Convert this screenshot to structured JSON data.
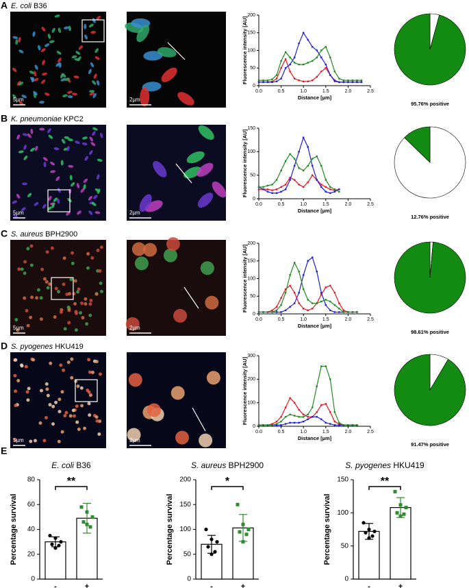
{
  "panels": [
    {
      "letter": "A",
      "species": "E. coli",
      "strain": "B36",
      "scale_1": "5µm",
      "scale_2": "2µm"
    },
    {
      "letter": "B",
      "species": "K. pneumoniae",
      "strain": "KPC2",
      "scale_1": "5µm",
      "scale_2": "2µm"
    },
    {
      "letter": "C",
      "species": "S. aureus",
      "strain": "BPH2900",
      "scale_1": "5µm",
      "scale_2": "2µm"
    },
    {
      "letter": "D",
      "species": "S. pyogenes",
      "strain": "HKU419",
      "scale_1": "5µm",
      "scale_2": "2µm"
    }
  ],
  "panel_e": {
    "letter": "E"
  },
  "chart_data": [
    {
      "type": "line",
      "ylabel": "Fluorescence intensity [AU]",
      "xlabel": "Distance  [µm]",
      "x": [
        0,
        0.1,
        0.2,
        0.3,
        0.4,
        0.5,
        0.6,
        0.7,
        0.8,
        0.9,
        1.0,
        1.1,
        1.2,
        1.3,
        1.4,
        1.5,
        1.6,
        1.7,
        1.8,
        1.9,
        2.0,
        2.1,
        2.2,
        2.3
      ],
      "series": [
        {
          "color": "#e8141c",
          "values": [
            10,
            10,
            10,
            12,
            20,
            50,
            75,
            40,
            20,
            15,
            12,
            12,
            15,
            25,
            40,
            50,
            30,
            12,
            10,
            10,
            10,
            10,
            10,
            10
          ]
        },
        {
          "color": "#1c1ce0",
          "values": [
            10,
            10,
            10,
            10,
            12,
            20,
            50,
            60,
            80,
            120,
            150,
            130,
            110,
            100,
            80,
            60,
            30,
            15,
            10,
            10,
            10,
            10,
            10,
            10
          ]
        },
        {
          "color": "#1e8a1e",
          "values": [
            15,
            15,
            15,
            18,
            30,
            70,
            95,
            80,
            65,
            60,
            60,
            65,
            70,
            80,
            100,
            110,
            80,
            40,
            20,
            15,
            15,
            15,
            15,
            15
          ]
        }
      ],
      "xlim": [
        0,
        2.5
      ],
      "xticks": [
        {
          "value": 0,
          "label": "0.0"
        },
        0.5,
        {
          "value": 1,
          "label": "1.0"
        },
        1.5,
        {
          "value": 2,
          "label": "2.0"
        },
        2.5
      ],
      "ylim": [
        0,
        200
      ],
      "yticks": [
        0,
        50,
        100,
        150,
        200
      ]
    },
    {
      "type": "line",
      "ylabel": "Fluorescence intensity [AU]",
      "xlabel": "Distance  [µm]",
      "x": [
        0,
        0.1,
        0.2,
        0.3,
        0.4,
        0.5,
        0.6,
        0.7,
        0.8,
        0.9,
        1.0,
        1.1,
        1.2,
        1.3,
        1.4,
        1.5,
        1.6,
        1.7,
        1.8
      ],
      "series": [
        {
          "color": "#e8141c",
          "values": [
            20,
            20,
            20,
            18,
            20,
            25,
            30,
            45,
            40,
            30,
            25,
            35,
            50,
            40,
            30,
            25,
            20,
            18,
            20
          ]
        },
        {
          "color": "#1c1ce0",
          "values": [
            25,
            20,
            15,
            12,
            12,
            15,
            20,
            40,
            70,
            100,
            130,
            110,
            70,
            40,
            25,
            15,
            12,
            15,
            20
          ]
        },
        {
          "color": "#1e8a1e",
          "values": [
            25,
            25,
            28,
            30,
            40,
            60,
            80,
            95,
            85,
            65,
            60,
            70,
            85,
            90,
            70,
            40,
            25,
            20,
            15
          ]
        }
      ],
      "xlim": [
        0,
        2.5
      ],
      "xticks": [
        {
          "value": 0,
          "label": "0.0"
        },
        0.5,
        {
          "value": 1,
          "label": "1.0"
        },
        1.5,
        {
          "value": 2,
          "label": "2.0"
        },
        2.5
      ],
      "ylim": [
        0,
        150
      ],
      "yticks": [
        0,
        50,
        100,
        150
      ]
    },
    {
      "type": "line",
      "ylabel": "Fluorescence intensity [AU]",
      "xlabel": "Distance  [µm]",
      "x": [
        0,
        0.1,
        0.2,
        0.3,
        0.4,
        0.5,
        0.6,
        0.7,
        0.8,
        0.9,
        1.0,
        1.1,
        1.2,
        1.3,
        1.4,
        1.5,
        1.6,
        1.7,
        1.8,
        1.9,
        2.0,
        2.1,
        2.2
      ],
      "series": [
        {
          "color": "#e8141c",
          "values": [
            5,
            5,
            5,
            10,
            20,
            45,
            70,
            80,
            60,
            30,
            15,
            10,
            15,
            30,
            55,
            75,
            80,
            60,
            30,
            10,
            5,
            5,
            5
          ]
        },
        {
          "color": "#1c1ce0",
          "values": [
            5,
            5,
            5,
            5,
            5,
            5,
            10,
            20,
            30,
            60,
            110,
            150,
            160,
            120,
            60,
            25,
            10,
            5,
            5,
            5,
            5,
            5,
            5
          ]
        },
        {
          "color": "#1e8a1e",
          "values": [
            5,
            5,
            5,
            5,
            10,
            25,
            60,
            110,
            145,
            120,
            70,
            40,
            30,
            30,
            35,
            40,
            35,
            25,
            15,
            5,
            5,
            5,
            5
          ]
        }
      ],
      "xlim": [
        0,
        2.5
      ],
      "xticks": [
        {
          "value": 0,
          "label": "0.0"
        },
        0.5,
        {
          "value": 1,
          "label": "1.0"
        },
        1.5,
        {
          "value": 2,
          "label": "2.0"
        },
        2.5
      ],
      "ylim": [
        0,
        200
      ],
      "yticks": [
        0,
        50,
        100,
        150,
        200
      ]
    },
    {
      "type": "line",
      "ylabel": "Fluorescence intensity [AU]",
      "xlabel": "Distance  [µm]",
      "x": [
        0,
        0.1,
        0.2,
        0.3,
        0.4,
        0.5,
        0.6,
        0.7,
        0.8,
        0.9,
        1.0,
        1.1,
        1.2,
        1.3,
        1.4,
        1.5,
        1.6,
        1.7,
        1.8,
        1.9,
        2.0,
        2.1,
        2.2
      ],
      "series": [
        {
          "color": "#e8141c",
          "values": [
            5,
            5,
            5,
            10,
            20,
            40,
            80,
            120,
            100,
            70,
            50,
            40,
            40,
            60,
            90,
            95,
            60,
            20,
            10,
            5,
            5,
            5,
            5
          ]
        },
        {
          "color": "#1c1ce0",
          "values": [
            5,
            5,
            5,
            5,
            5,
            5,
            10,
            15,
            15,
            15,
            20,
            30,
            40,
            40,
            30,
            15,
            10,
            5,
            5,
            5,
            5,
            5,
            5
          ]
        },
        {
          "color": "#1e8a1e",
          "values": [
            5,
            5,
            5,
            5,
            10,
            20,
            40,
            50,
            45,
            40,
            40,
            50,
            80,
            170,
            255,
            255,
            200,
            60,
            15,
            5,
            5,
            5,
            5
          ]
        }
      ],
      "xlim": [
        0,
        2.5
      ],
      "xticks": [
        {
          "value": 0,
          "label": "0.0"
        },
        0.5,
        {
          "value": 1,
          "label": "1.0"
        },
        1.5,
        {
          "value": 2,
          "label": "2.0"
        },
        2.5
      ],
      "ylim": [
        0,
        300
      ],
      "yticks": [
        0,
        100,
        200,
        300
      ]
    },
    {
      "type": "pie",
      "values": [
        4.24,
        95.76
      ],
      "colors": [
        "#ffffff",
        "#138a12"
      ],
      "positive_label": "95.76% positive"
    },
    {
      "type": "pie",
      "values": [
        87.24,
        12.76
      ],
      "colors": [
        "#ffffff",
        "#138a12"
      ],
      "positive_label": "12.76% positive"
    },
    {
      "type": "pie",
      "values": [
        1.39,
        98.61
      ],
      "colors": [
        "#ffffff",
        "#138a12"
      ],
      "positive_label": "98.61% positive"
    },
    {
      "type": "pie",
      "values": [
        8.53,
        91.47
      ],
      "colors": [
        "#ffffff",
        "#138a12"
      ],
      "positive_label": "91.47% positive"
    },
    {
      "type": "bar",
      "title_species": "E. coli",
      "title_strain": "B36",
      "ylabel": "Percentage survival",
      "categories": [
        "-",
        "+"
      ],
      "values": [
        30,
        49
      ],
      "errors": [
        4,
        12
      ],
      "colors": [
        "#000000",
        "#2e8b2e"
      ],
      "points": [
        [
          35,
          33,
          30,
          28,
          27,
          25
        ],
        [
          58,
          54,
          50,
          46,
          42,
          44
        ]
      ],
      "significance": "**",
      "ylim": [
        0,
        80
      ],
      "yticks": [
        0,
        20,
        40,
        60,
        80
      ]
    },
    {
      "type": "bar",
      "title_species": "S. aureus",
      "title_strain": "BPH2900",
      "ylabel": "Percentage survival",
      "categories": [
        "-",
        "+"
      ],
      "values": [
        70,
        103
      ],
      "errors": [
        18,
        27
      ],
      "colors": [
        "#000000",
        "#2e8b2e"
      ],
      "points": [
        [
          100,
          80,
          75,
          65,
          55,
          50
        ],
        [
          150,
          110,
          100,
          95,
          90,
          75
        ]
      ],
      "significance": "*",
      "ylim": [
        0,
        200
      ],
      "yticks": [
        0,
        50,
        100,
        150,
        200
      ]
    },
    {
      "type": "bar",
      "title_species": "S. pyogenes",
      "title_strain": "HKU419",
      "ylabel": "Percentage survival",
      "categories": [
        "-",
        "+"
      ],
      "values": [
        72,
        108
      ],
      "errors": [
        12,
        15
      ],
      "colors": [
        "#000000",
        "#2e8b2e"
      ],
      "points": [
        [
          85,
          75,
          72,
          70,
          65,
          62
        ],
        [
          132,
          112,
          108,
          100,
          98,
          95
        ]
      ],
      "significance": "**",
      "ylim": [
        0,
        150
      ],
      "yticks": [
        0,
        50,
        100,
        150
      ]
    }
  ]
}
